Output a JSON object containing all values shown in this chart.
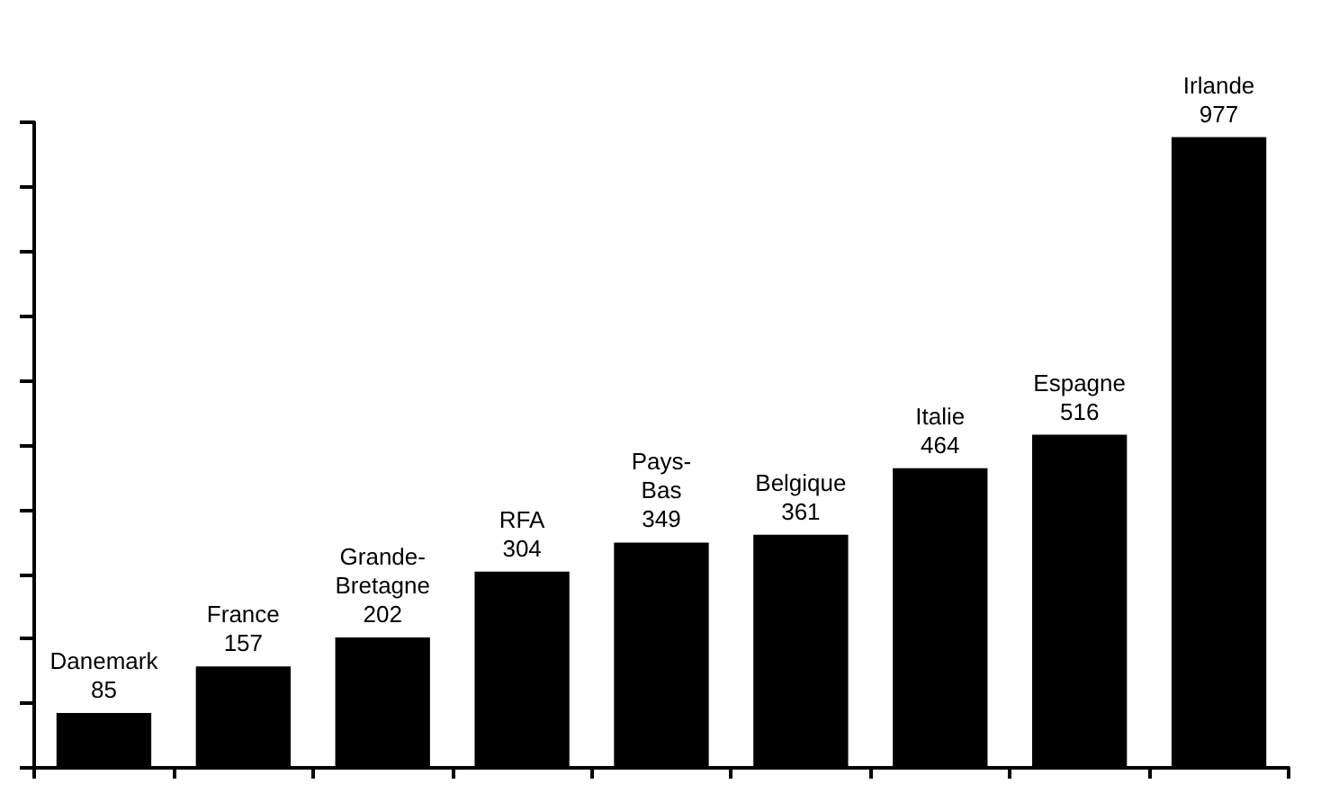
{
  "chart_data": {
    "type": "bar",
    "categories": [
      "Danemark",
      "France",
      "Grande-Bretagne",
      "RFA",
      "Pays-Bas",
      "Belgique",
      "Italie",
      "Espagne",
      "Irlande"
    ],
    "values": [
      85,
      157,
      202,
      304,
      349,
      361,
      464,
      516,
      977
    ],
    "color": "#000000",
    "ylim": [
      0,
      1000
    ],
    "yticks": [
      {
        "value": 0,
        "label": null
      },
      {
        "value": 100,
        "label": null
      },
      {
        "value": 200,
        "label": null
      },
      {
        "value": 300,
        "label": null
      },
      {
        "value": 400,
        "label": null
      },
      {
        "value": 500,
        "label": null
      },
      {
        "value": 600,
        "label": null
      },
      {
        "value": 700,
        "label": null
      },
      {
        "value": 800,
        "label": null
      },
      {
        "value": 900,
        "label": null
      },
      {
        "value": 1000,
        "label": null
      }
    ],
    "data_labels": true,
    "grid": false
  }
}
